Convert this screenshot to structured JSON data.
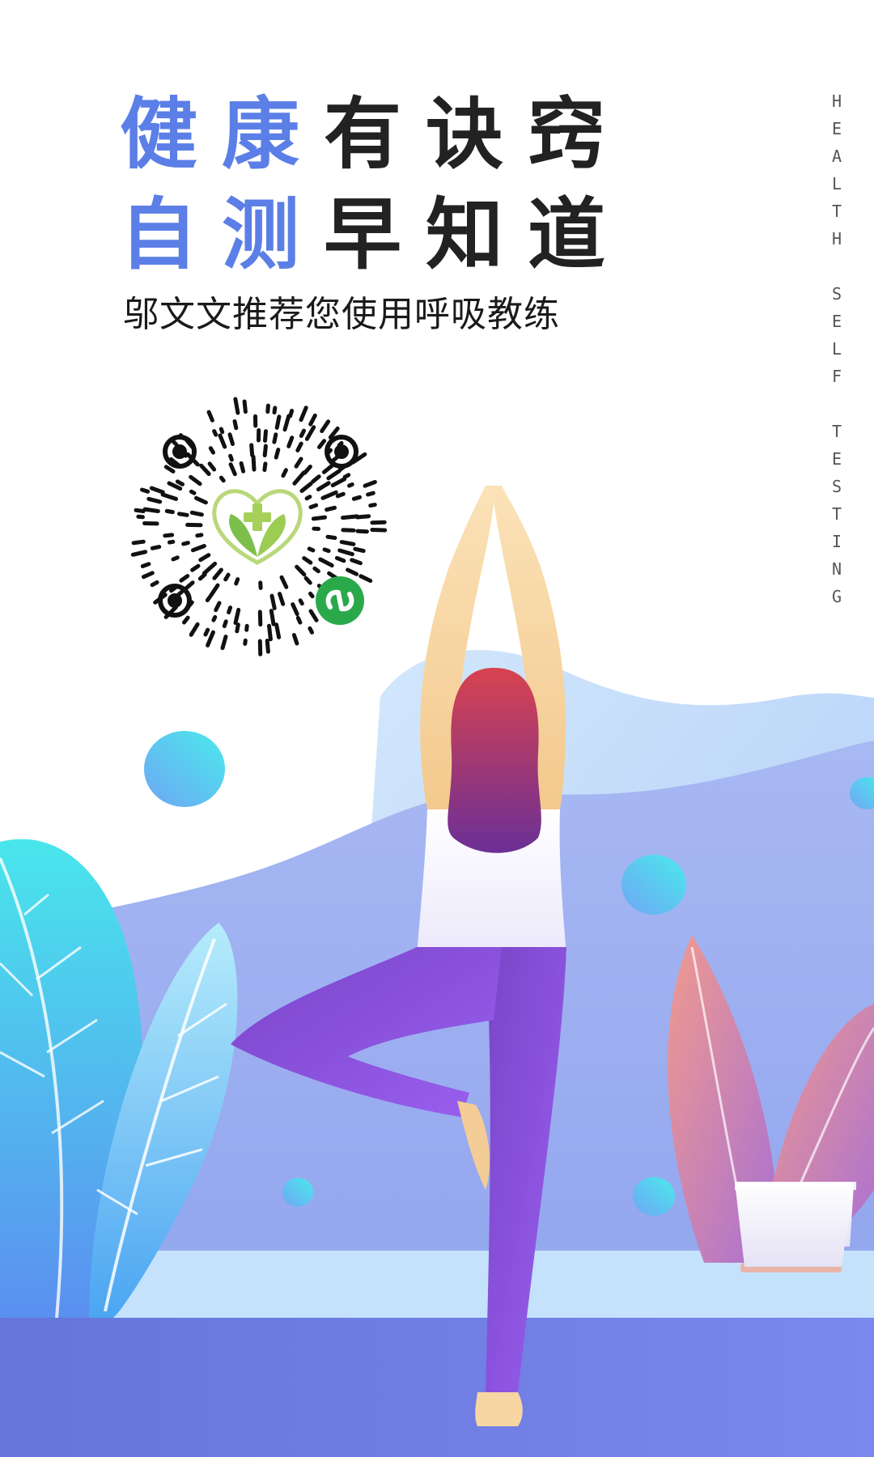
{
  "headline": {
    "line1": {
      "highlight": "健康",
      "rest": "有诀窍"
    },
    "line2": {
      "highlight": "自测",
      "rest": "早知道"
    }
  },
  "subtitle": "邬文文推荐您使用呼吸教练",
  "vertical_text": "HEALTH SELF TESTING",
  "colors": {
    "accent": "#5b7fe6",
    "dark_text": "#222222",
    "floor": "#6a78e0",
    "pants": "#8b55de",
    "hair_top": "#d8434f",
    "hair_bottom": "#6b2f96",
    "leaf_cyan": "#49e1ec",
    "plant_pink": "#e98b8f"
  },
  "icons": {
    "qr": "miniprogram-qr-code-icon",
    "logo": "heart-leaf-cross-logo-icon",
    "badge": "wechat-miniprogram-icon"
  }
}
